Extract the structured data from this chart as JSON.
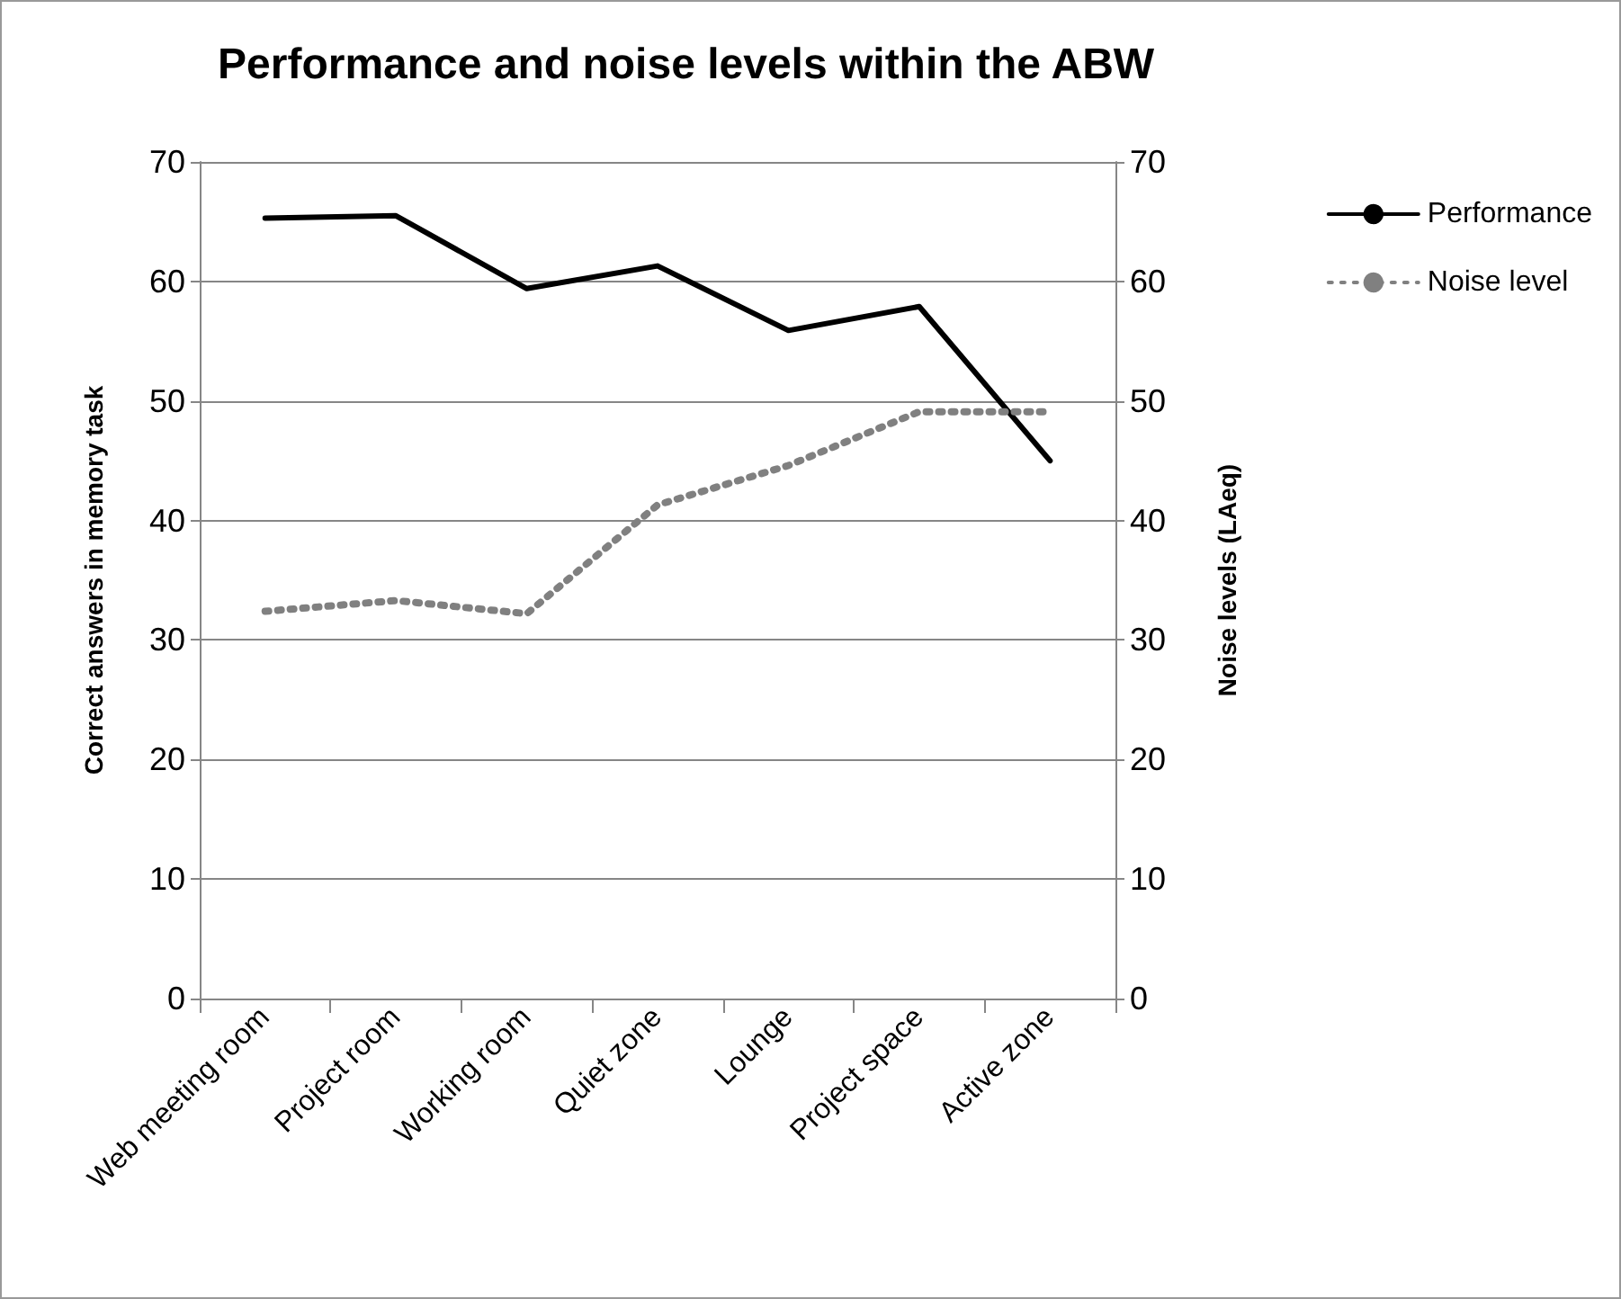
{
  "chart_data": {
    "type": "line",
    "title": "Performance and noise levels within the ABW",
    "ylabel": "Correct answers in memory task",
    "y2label": "Noise levels (LAeq)",
    "categories": [
      "Web meeting room",
      "Project room",
      "Working room",
      "Quiet zone",
      "Lounge",
      "Project space",
      "Active zone"
    ],
    "series": [
      {
        "name": "Performance",
        "color": "#000000",
        "line_style": "solid",
        "values": [
          65.3,
          65.5,
          59.4,
          61.3,
          55.9,
          57.9,
          45.0
        ]
      },
      {
        "name": "Noise level",
        "color": "#808080",
        "line_style": "dotted",
        "values": [
          32.4,
          33.3,
          32.2,
          41.3,
          44.6,
          49.1,
          49.1
        ]
      }
    ],
    "ylim": [
      0,
      70
    ],
    "yticks": [
      0,
      10,
      20,
      30,
      40,
      50,
      60,
      70
    ],
    "y2lim": [
      0,
      70
    ],
    "y2ticks": [
      0,
      10,
      20,
      30,
      40,
      50,
      60,
      70
    ],
    "grid": "y",
    "legend": "right",
    "marker": "none"
  }
}
